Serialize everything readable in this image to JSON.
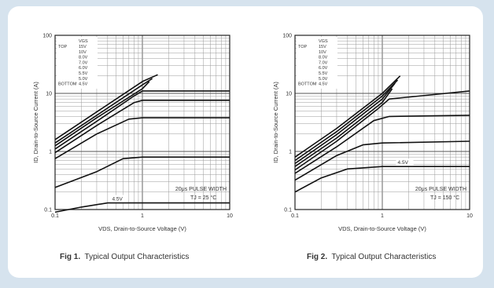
{
  "figures": [
    {
      "caption_prefix": "Fig 1.",
      "caption_text": "Typical Output Characteristics",
      "note_line1": "20μs PULSE WIDTH",
      "note_line2": "TJ = 25 °C",
      "vgs_header": "VGS",
      "vgs_top_label": "TOP",
      "vgs_bottom_label": "BOTTOM",
      "vgs_list": [
        "15V",
        "10V",
        "8.0V",
        "7.0V",
        "6.0V",
        "5.5V",
        "5.0V",
        "4.5V"
      ],
      "curve_label": "4.5V"
    },
    {
      "caption_prefix": "Fig 2.",
      "caption_text": "Typical Output Characteristics",
      "note_line1": "20μs PULSE WIDTH",
      "note_line2": "TJ = 150 °C",
      "vgs_header": "VGS",
      "vgs_top_label": "TOP",
      "vgs_bottom_label": "BOTTOM",
      "vgs_list": [
        "15V",
        "10V",
        "8.0V",
        "7.0V",
        "6.0V",
        "5.5V",
        "5.0V",
        "4.5V"
      ],
      "curve_label": "4.5V"
    }
  ],
  "chart_data": [
    {
      "type": "line",
      "title": "Fig 1. Typical Output Characteristics",
      "xlabel": "VDS, Drain-to-Source Voltage (V)",
      "ylabel": "ID, Drain-to-Source Current (A)",
      "xscale": "log",
      "yscale": "log",
      "xlim": [
        0.1,
        10
      ],
      "ylim": [
        0.1,
        100
      ],
      "xticks": [
        "0.1",
        "1",
        "10"
      ],
      "yticks": [
        "0.1",
        "1",
        "10",
        "100"
      ],
      "grid": true,
      "series": [
        {
          "name": "15V",
          "x": [
            0.1,
            0.3,
            1,
            1.5
          ],
          "y": [
            1.6,
            4.8,
            16,
            21
          ]
        },
        {
          "name": "10V",
          "x": [
            0.1,
            0.3,
            1,
            1.3
          ],
          "y": [
            1.4,
            4.2,
            14,
            18
          ]
        },
        {
          "name": "8.0V",
          "x": [
            0.1,
            0.3,
            1,
            1.2
          ],
          "y": [
            1.25,
            3.8,
            12,
            16
          ]
        },
        {
          "name": "7.0V",
          "x": [
            0.1,
            0.3,
            0.8,
            1,
            10
          ],
          "y": [
            1.1,
            3.3,
            9,
            11,
            11
          ]
        },
        {
          "name": "6.0V",
          "x": [
            0.1,
            0.3,
            0.8,
            1,
            10
          ],
          "y": [
            0.95,
            2.8,
            6.9,
            7.6,
            7.6
          ]
        },
        {
          "name": "5.5V",
          "x": [
            0.1,
            0.3,
            0.7,
            1,
            10
          ],
          "y": [
            0.75,
            2.0,
            3.6,
            3.8,
            3.8
          ]
        },
        {
          "name": "5.0V",
          "x": [
            0.1,
            0.3,
            0.6,
            1,
            10
          ],
          "y": [
            0.24,
            0.45,
            0.75,
            0.8,
            0.8
          ]
        },
        {
          "name": "4.5V",
          "x": [
            0.1,
            0.2,
            0.4,
            1,
            10
          ],
          "y": [
            0.09,
            0.11,
            0.13,
            0.13,
            0.13
          ]
        }
      ]
    },
    {
      "type": "line",
      "title": "Fig 2. Typical Output Characteristics",
      "xlabel": "VDS, Drain-to-Source Voltage (V)",
      "ylabel": "ID, Drain-to-Source Current (A)",
      "xscale": "log",
      "yscale": "log",
      "xlim": [
        0.1,
        10
      ],
      "ylim": [
        0.1,
        100
      ],
      "xticks": [
        "0.1",
        "1",
        "10"
      ],
      "yticks": [
        "0.1",
        "1",
        "10",
        "100"
      ],
      "grid": true,
      "series": [
        {
          "name": "15V",
          "x": [
            0.1,
            0.3,
            1,
            1.6
          ],
          "y": [
            0.8,
            2.5,
            10,
            20
          ]
        },
        {
          "name": "10V",
          "x": [
            0.1,
            0.3,
            1,
            1.5
          ],
          "y": [
            0.7,
            2.2,
            9,
            17
          ]
        },
        {
          "name": "8.0V",
          "x": [
            0.1,
            0.3,
            1,
            1.4
          ],
          "y": [
            0.62,
            1.95,
            8,
            15
          ]
        },
        {
          "name": "7.0V",
          "x": [
            0.1,
            0.3,
            1,
            1.3
          ],
          "y": [
            0.55,
            1.7,
            7,
            12
          ]
        },
        {
          "name": "6.0V",
          "x": [
            0.1,
            0.3,
            0.9,
            1.2,
            10
          ],
          "y": [
            0.48,
            1.5,
            5.5,
            8,
            11
          ]
        },
        {
          "name": "5.5V",
          "x": [
            0.1,
            0.3,
            0.8,
            1.2,
            10
          ],
          "y": [
            0.42,
            1.2,
            3.4,
            4.0,
            4.2
          ]
        },
        {
          "name": "5.0V",
          "x": [
            0.1,
            0.3,
            0.6,
            1,
            10
          ],
          "y": [
            0.32,
            0.85,
            1.3,
            1.4,
            1.5
          ]
        },
        {
          "name": "4.5V",
          "x": [
            0.1,
            0.2,
            0.4,
            1,
            10
          ],
          "y": [
            0.2,
            0.35,
            0.5,
            0.55,
            0.55
          ]
        }
      ]
    }
  ]
}
